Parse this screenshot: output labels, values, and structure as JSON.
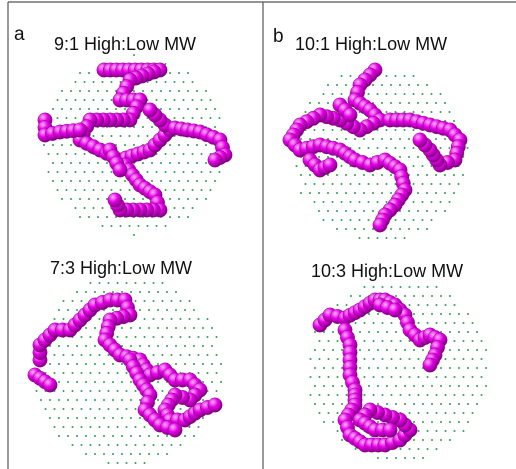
{
  "figure": {
    "panels": [
      {
        "letter": "a",
        "plots": [
          {
            "label": "9:1 High:Low MW"
          },
          {
            "label": "7:3 High:Low MW"
          }
        ]
      },
      {
        "letter": "b",
        "plots": [
          {
            "label": "10:1 High:Low MW"
          },
          {
            "label": "10:3 High:Low MW"
          }
        ]
      }
    ]
  },
  "colors": {
    "bead": "#e600e6",
    "bead_highlight": "#ffb3ff",
    "bead_shadow": "#7a007a",
    "lattice": "#2f9e4f",
    "frame": "#555555"
  }
}
